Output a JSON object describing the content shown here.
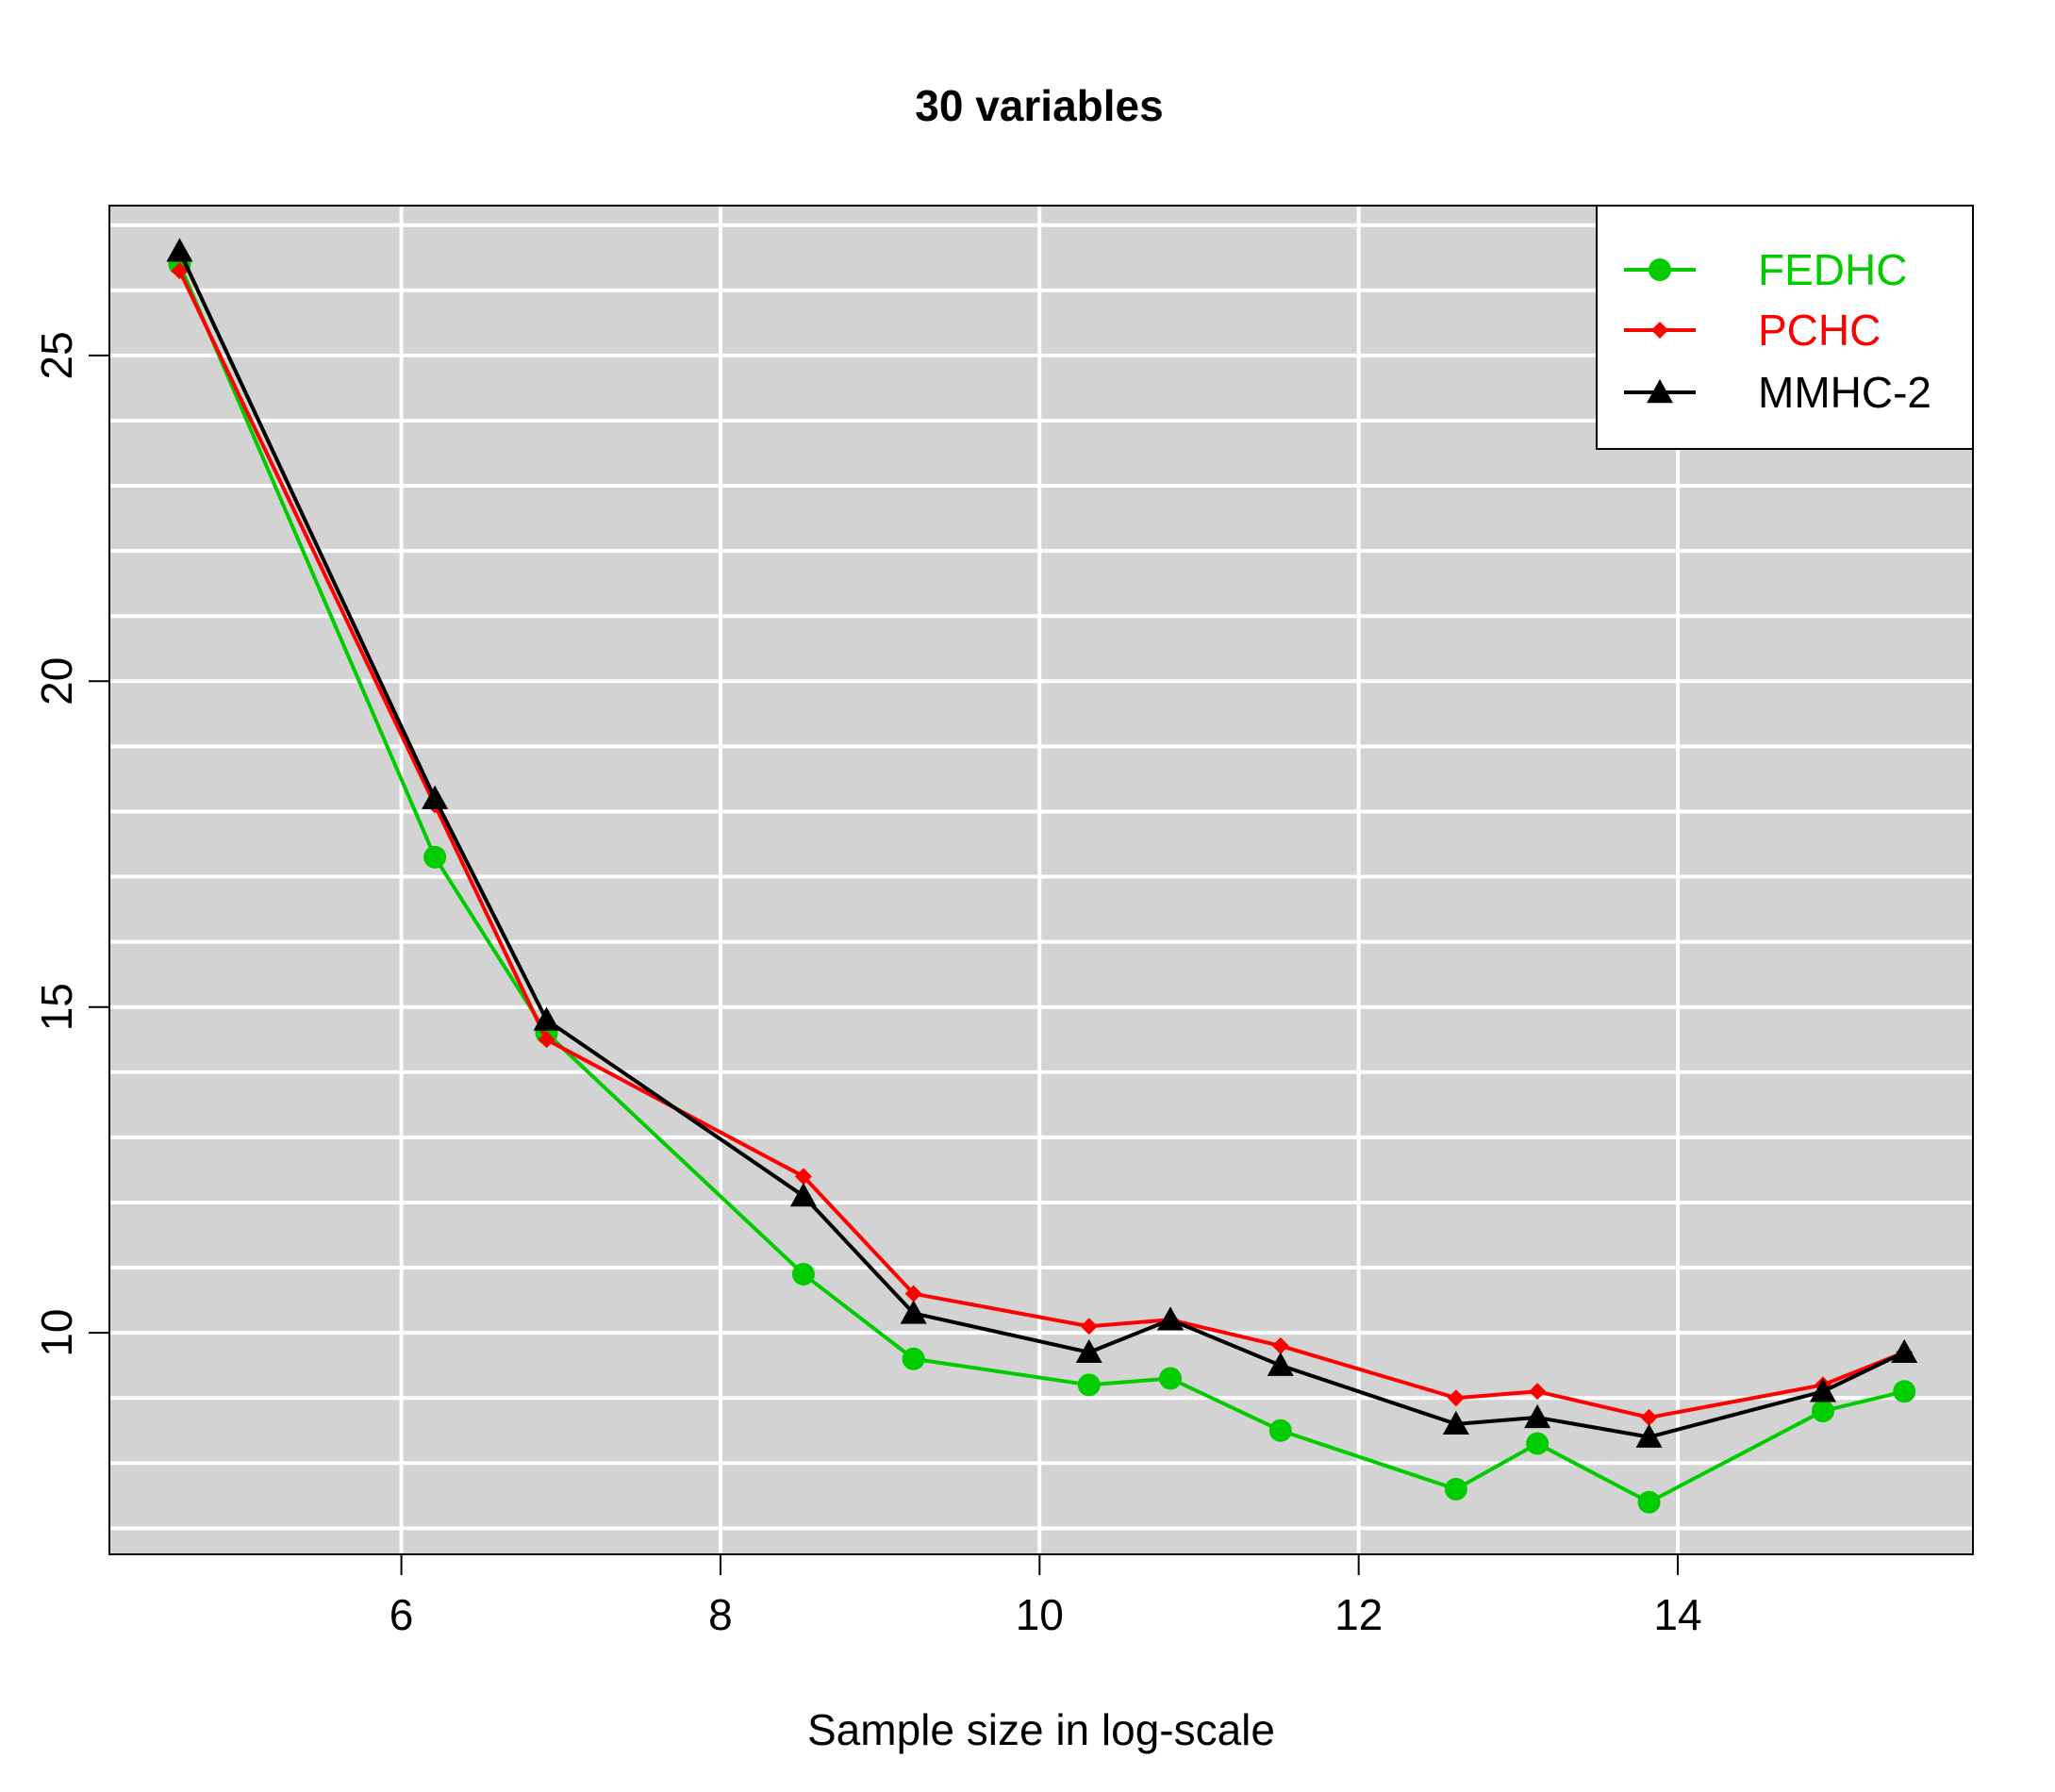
{
  "chart_data": {
    "type": "line",
    "title": "30 variables",
    "xlabel": "Sample size in log-scale",
    "ylabel": "",
    "xlim": [
      4.17,
      15.85
    ],
    "ylim": [
      6.6,
      27.3
    ],
    "xticks": [
      6,
      8,
      10,
      12,
      14
    ],
    "yticks": [
      10,
      15,
      20,
      25
    ],
    "grid": true,
    "background": "#d3d3d3",
    "legend_position": "top-right",
    "x": [
      4.61,
      6.21,
      6.91,
      8.52,
      9.21,
      10.31,
      10.82,
      11.51,
      12.61,
      13.12,
      13.82,
      14.91,
      15.42
    ],
    "series": [
      {
        "name": "FEDHC",
        "color": "#00cc00",
        "marker": "circle",
        "values": [
          26.4,
          17.3,
          14.6,
          10.9,
          9.6,
          9.2,
          9.3,
          8.5,
          7.6,
          8.3,
          7.4,
          8.8,
          9.1
        ]
      },
      {
        "name": "PCHC",
        "color": "#ff0000",
        "marker": "diamond",
        "values": [
          26.3,
          18.1,
          14.5,
          12.4,
          10.6,
          10.1,
          10.2,
          9.8,
          9.0,
          9.1,
          8.7,
          9.2,
          9.7
        ]
      },
      {
        "name": "MMHC-2",
        "color": "#000000",
        "marker": "triangle",
        "values": [
          26.6,
          18.2,
          14.8,
          12.1,
          10.3,
          9.7,
          10.2,
          9.5,
          8.6,
          8.7,
          8.4,
          9.1,
          9.7
        ]
      }
    ]
  }
}
